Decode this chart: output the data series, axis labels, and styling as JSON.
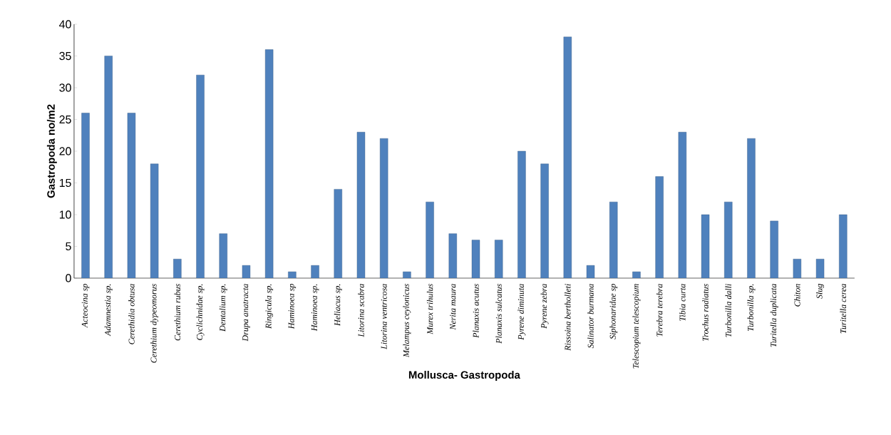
{
  "chart_data": {
    "type": "bar",
    "xlabel": "Mollusca- Gastropoda",
    "ylabel": "Gastropoda no/m2",
    "categories": [
      "Acteocina sp",
      "Adamnestia sp.",
      "Cerethidia obtusa",
      "Cerethium dypeomorus",
      "Cerethium rubus",
      "Cyclichnidae sp.",
      "Dentalium sp.",
      "Drupa anatracta",
      "Ringicula sp.",
      "Haminoea sp",
      "Haminoea sp.",
      "Heliacus sp.",
      "Litorina scabra",
      "Litorina ventricosa",
      "Melampus ceylonicus",
      "Murex trihulus",
      "Nerita maura",
      "Planaxis acutus",
      "Planaxis sulcatus",
      "Pyrene diminuta",
      "Pyrene zebra",
      "Rissoina bertholleti",
      "Salinator burmana",
      "Siphonaridae sp",
      "Telescopium telescopium",
      "Terebra terebra",
      "Tibia curta",
      "Trochus radiatus",
      "Turbonilla dalli",
      "Turbonilla sp.",
      "Turitella duplicata",
      "Chiton",
      "Slug",
      "Turitella cerea"
    ],
    "values": [
      26,
      35,
      26,
      18,
      3,
      32,
      7,
      2,
      36,
      1,
      2,
      14,
      23,
      22,
      1,
      12,
      7,
      6,
      6,
      20,
      18,
      38,
      2,
      12,
      1,
      16,
      23,
      10,
      12,
      22,
      9,
      3,
      3,
      10
    ],
    "color": "#4f81bd",
    "ylim": [
      0,
      40
    ],
    "yticks": [
      0,
      5,
      10,
      15,
      20,
      25,
      30,
      35,
      40
    ],
    "grid": false
  }
}
